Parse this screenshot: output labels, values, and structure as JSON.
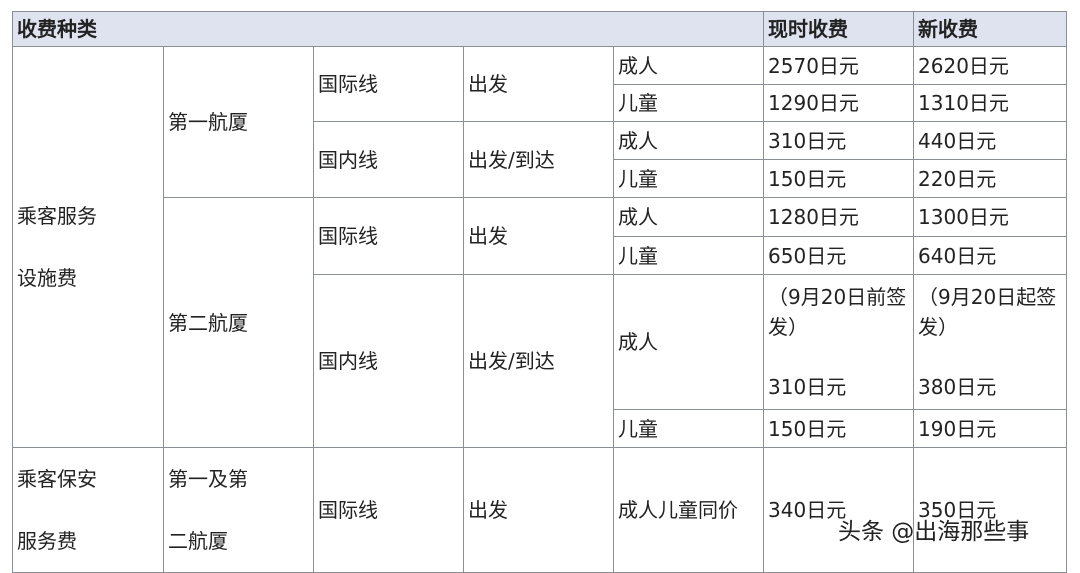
{
  "header": {
    "category": "收费种类",
    "current": "现时收费",
    "new": "新收费"
  },
  "passenger_service": {
    "label_line1": "乘客服务",
    "label_line2": "设施费",
    "t1": {
      "name": "第一航厦",
      "intl": {
        "route": "国际线",
        "direction": "出发",
        "adult": {
          "label": "成人",
          "current": "2570日元",
          "new": "2620日元"
        },
        "child": {
          "label": "儿童",
          "current": "1290日元",
          "new": "1310日元"
        }
      },
      "dom": {
        "route": "国内线",
        "direction": "出发/到达",
        "adult": {
          "label": "成人",
          "current": "310日元",
          "new": "440日元"
        },
        "child": {
          "label": "儿童",
          "current": "150日元",
          "new": "220日元"
        }
      }
    },
    "t2": {
      "name": "第二航厦",
      "intl": {
        "route": "国际线",
        "direction": "出发",
        "adult": {
          "label": "成人",
          "current": "1280日元",
          "new": "1300日元"
        },
        "child": {
          "label": "儿童",
          "current": "650日元",
          "new": "640日元"
        }
      },
      "dom": {
        "route": "国内线",
        "direction": "出发/到达",
        "adult": {
          "label": "成人",
          "current_note": "（9月20日前签发）",
          "current": "310日元",
          "new_note": "（9月20日起签发）",
          "new": "380日元"
        },
        "child": {
          "label": "儿童",
          "current": "150日元",
          "new": "190日元"
        }
      }
    }
  },
  "security": {
    "label_line1": "乘客保安",
    "label_line2": "服务费",
    "terminal_line1": "第一及第",
    "terminal_line2": "二航厦",
    "route": "国际线",
    "direction": "出发",
    "passenger": "成人儿童同价",
    "current": "340日元",
    "new": "350日元"
  },
  "watermark": "头条 @出海那些事"
}
